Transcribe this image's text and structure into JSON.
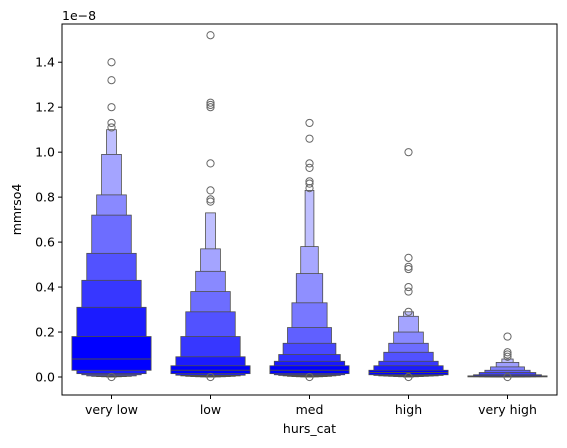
{
  "chart_data": {
    "type": "boxen",
    "title": "",
    "xlabel": "hurs_cat",
    "ylabel": "mmrso4",
    "y_scale_label": "1e−8",
    "ylim": [
      -0.08,
      1.57
    ],
    "y_ticks": [
      0.0,
      0.2,
      0.4,
      0.6,
      0.8,
      1.0,
      1.2,
      1.4
    ],
    "y_tick_labels": [
      "0.0",
      "0.2",
      "0.4",
      "0.6",
      "0.8",
      "1.0",
      "1.2",
      "1.4"
    ],
    "grid": false,
    "legend": "none",
    "base_color": "#0000ff",
    "edge_color": "#4d4d4d",
    "categories": [
      "very low",
      "low",
      "med",
      "high",
      "very high"
    ],
    "series": [
      {
        "category": "very low",
        "median": 0.08,
        "levels": [
          [
            0.03,
            0.18
          ],
          [
            0.015,
            0.31
          ],
          [
            0.01,
            0.43
          ],
          [
            0.005,
            0.55
          ],
          [
            0.003,
            0.72
          ],
          [
            0.002,
            0.81
          ],
          [
            0.001,
            0.99
          ],
          [
            0.0,
            1.1
          ]
        ],
        "outliers": [
          0.0,
          1.11,
          1.13,
          1.2,
          1.32,
          1.4
        ]
      },
      {
        "category": "low",
        "median": 0.03,
        "levels": [
          [
            0.015,
            0.05
          ],
          [
            0.008,
            0.09
          ],
          [
            0.005,
            0.18
          ],
          [
            0.003,
            0.29
          ],
          [
            0.002,
            0.38
          ],
          [
            0.001,
            0.47
          ],
          [
            0.0005,
            0.57
          ],
          [
            0.0,
            0.73
          ]
        ],
        "outliers": [
          0.0,
          0.78,
          0.79,
          0.83,
          0.95,
          1.2,
          1.21,
          1.22,
          1.52
        ]
      },
      {
        "category": "med",
        "median": 0.03,
        "levels": [
          [
            0.015,
            0.05
          ],
          [
            0.01,
            0.07
          ],
          [
            0.007,
            0.1
          ],
          [
            0.005,
            0.15
          ],
          [
            0.003,
            0.22
          ],
          [
            0.002,
            0.33
          ],
          [
            0.001,
            0.46
          ],
          [
            0.0005,
            0.58
          ],
          [
            0.0,
            0.83
          ]
        ],
        "outliers": [
          0.0,
          0.84,
          0.86,
          0.87,
          0.93,
          0.95,
          1.06,
          1.13
        ]
      },
      {
        "category": "high",
        "median": 0.02,
        "levels": [
          [
            0.01,
            0.03
          ],
          [
            0.007,
            0.05
          ],
          [
            0.005,
            0.07
          ],
          [
            0.004,
            0.11
          ],
          [
            0.003,
            0.15
          ],
          [
            0.002,
            0.2
          ],
          [
            0.001,
            0.27
          ],
          [
            0.0,
            0.29
          ]
        ],
        "outliers": [
          0.0,
          0.29,
          0.38,
          0.4,
          0.48,
          0.49,
          0.53,
          1.0
        ]
      },
      {
        "category": "very high",
        "median": 0.003,
        "levels": [
          [
            0.002,
            0.005
          ],
          [
            0.0015,
            0.01
          ],
          [
            0.001,
            0.02
          ],
          [
            0.0007,
            0.03
          ],
          [
            0.0004,
            0.045
          ],
          [
            0.0002,
            0.065
          ],
          [
            0.0,
            0.08
          ]
        ],
        "outliers": [
          0.0,
          0.09,
          0.1,
          0.11,
          0.18
        ]
      }
    ]
  }
}
